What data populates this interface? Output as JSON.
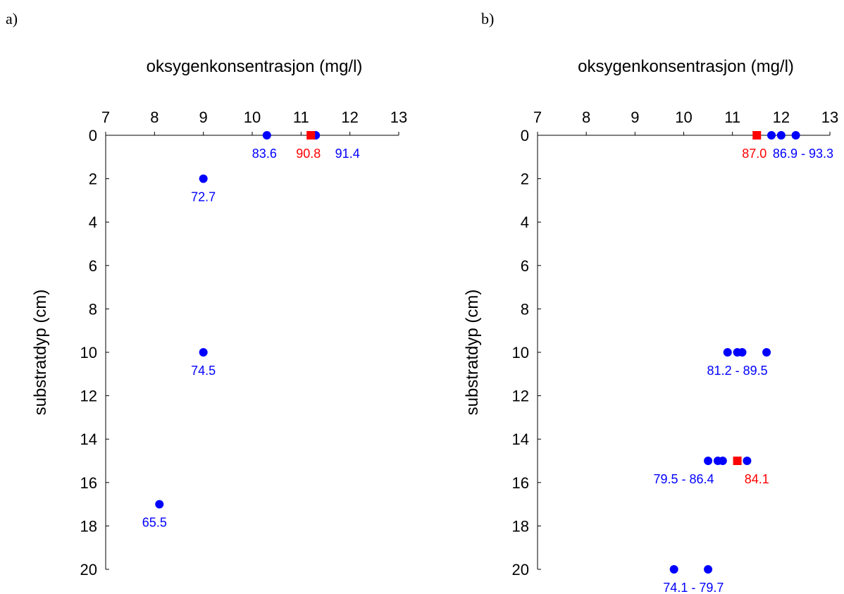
{
  "colors": {
    "measured": "#0000ff",
    "reference": "#ff0000",
    "axis": "#000000"
  },
  "chart_data": [
    {
      "panel_label": "a)",
      "type": "scatter",
      "xlabel": "oksygenkonsentrasjon (mg/l)",
      "ylabel": "substratdyp (cm)",
      "xlim": [
        7,
        13
      ],
      "ylim": [
        20,
        0
      ],
      "x_ticks": [
        7,
        8,
        9,
        10,
        11,
        12,
        13
      ],
      "y_ticks": [
        0,
        2,
        4,
        6,
        8,
        10,
        12,
        14,
        16,
        18,
        20
      ],
      "x_axis_position": "top",
      "grid": false,
      "series": [
        {
          "marker": "circle",
          "color": "#0000ff",
          "points": [
            {
              "x": 10.3,
              "y": 0
            },
            {
              "x": 11.3,
              "y": 0
            },
            {
              "x": 9.0,
              "y": 2
            },
            {
              "x": 9.0,
              "y": 10
            },
            {
              "x": 8.1,
              "y": 17
            }
          ]
        },
        {
          "marker": "square",
          "color": "#ff0000",
          "points": [
            {
              "x": 11.2,
              "y": 0
            }
          ]
        }
      ],
      "annotations": [
        {
          "text": "83.6",
          "x": 10.25,
          "y": 0,
          "color": "#0000ff"
        },
        {
          "text": "90.8",
          "x": 11.15,
          "y": 0,
          "color": "#ff0000"
        },
        {
          "text": "91.4",
          "x": 11.95,
          "y": 0,
          "color": "#0000ff"
        },
        {
          "text": "72.7",
          "x": 9.0,
          "y": 2,
          "color": "#0000ff"
        },
        {
          "text": "74.5",
          "x": 9.0,
          "y": 10,
          "color": "#0000ff"
        },
        {
          "text": "65.5",
          "x": 8.0,
          "y": 17,
          "color": "#0000ff"
        }
      ]
    },
    {
      "panel_label": "b)",
      "type": "scatter",
      "xlabel": "oksygenkonsentrasjon (mg/l)",
      "ylabel": "substratdyp (cm)",
      "xlim": [
        7,
        13
      ],
      "ylim": [
        20,
        0
      ],
      "x_ticks": [
        7,
        8,
        9,
        10,
        11,
        12,
        13
      ],
      "y_ticks": [
        0,
        2,
        4,
        6,
        8,
        10,
        12,
        14,
        16,
        18,
        20
      ],
      "x_axis_position": "top",
      "grid": false,
      "series": [
        {
          "marker": "circle",
          "color": "#0000ff",
          "points": [
            {
              "x": 11.8,
              "y": 0
            },
            {
              "x": 12.0,
              "y": 0
            },
            {
              "x": 12.3,
              "y": 0
            },
            {
              "x": 10.9,
              "y": 10
            },
            {
              "x": 11.1,
              "y": 10
            },
            {
              "x": 11.2,
              "y": 10
            },
            {
              "x": 11.7,
              "y": 10
            },
            {
              "x": 10.5,
              "y": 15
            },
            {
              "x": 10.7,
              "y": 15
            },
            {
              "x": 10.8,
              "y": 15
            },
            {
              "x": 11.3,
              "y": 15
            },
            {
              "x": 9.8,
              "y": 20
            },
            {
              "x": 10.5,
              "y": 20
            }
          ]
        },
        {
          "marker": "square",
          "color": "#ff0000",
          "points": [
            {
              "x": 11.5,
              "y": 0
            },
            {
              "x": 11.1,
              "y": 15
            }
          ]
        }
      ],
      "annotations": [
        {
          "text": "87.0",
          "x": 11.45,
          "y": 0,
          "color": "#ff0000"
        },
        {
          "text": "86.9 - 93.3",
          "x": 12.45,
          "y": 0,
          "color": "#0000ff"
        },
        {
          "text": "81.2 - 89.5",
          "x": 11.1,
          "y": 10,
          "color": "#0000ff"
        },
        {
          "text": "79.5 - 86.4",
          "x": 10.0,
          "y": 15,
          "color": "#0000ff"
        },
        {
          "text": "84.1",
          "x": 11.5,
          "y": 15,
          "color": "#ff0000"
        },
        {
          "text": "74.1 - 79.7",
          "x": 10.2,
          "y": 20,
          "color": "#0000ff"
        }
      ]
    }
  ]
}
